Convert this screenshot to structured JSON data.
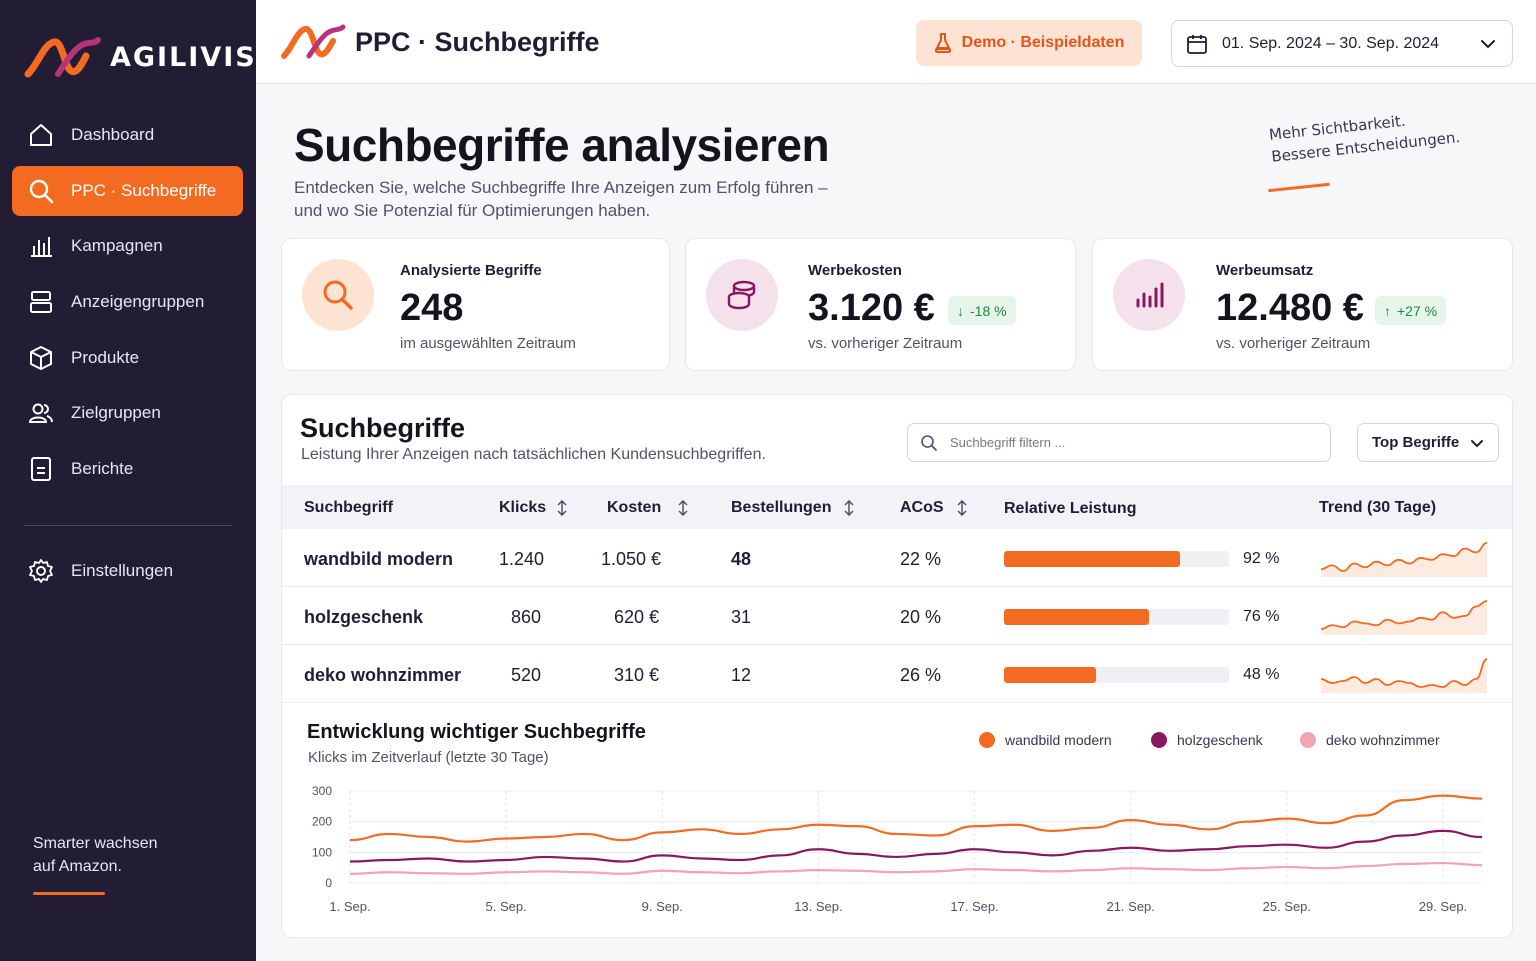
{
  "brand": {
    "name": "AGILIVIS",
    "accent": "#f26b21",
    "dark": "#221c34"
  },
  "sidebar": {
    "items": [
      {
        "label": "Dashboard",
        "icon": "home-icon"
      },
      {
        "label": "PPC · Suchbegriffe",
        "icon": "search-icon",
        "active": true
      },
      {
        "label": "Kampagnen",
        "icon": "bar-chart-icon"
      },
      {
        "label": "Anzeigengruppen",
        "icon": "layers-icon"
      },
      {
        "label": "Produkte",
        "icon": "box-icon"
      },
      {
        "label": "Zielgruppen",
        "icon": "users-icon"
      },
      {
        "label": "Berichte",
        "icon": "document-icon"
      }
    ],
    "settings": {
      "label": "Einstellungen",
      "icon": "gear-icon"
    },
    "tagline_1": "Smarter wachsen",
    "tagline_2": "auf Amazon."
  },
  "header": {
    "title": "PPC · Suchbegriffe",
    "demo_badge": "Demo · Beispieldaten",
    "date_range": "01. Sep. 2024 – 30. Sep. 2024"
  },
  "page": {
    "title": "Suchbegriffe analysieren",
    "subtitle_1": "Entdecken Sie, welche Suchbegriffe Ihre Anzeigen zum Erfolg führen –",
    "subtitle_2": "und wo Sie Potenzial für Optimierungen haben.",
    "slogan_1": "Mehr Sichtbarkeit.",
    "slogan_2": "Bessere Entscheidungen."
  },
  "kpis": [
    {
      "label": "Analysierte Begriffe",
      "value": "248",
      "note": "im ausgewählten Zeitraum",
      "icon": "search-icon",
      "color": "#fde3d3"
    },
    {
      "label": "Werbekosten",
      "value": "3.120 €",
      "delta": "-18 %",
      "note": "vs. vorheriger Zeitraum",
      "icon": "coins-icon",
      "color": "#f4e1ec"
    },
    {
      "label": "Werbeumsatz",
      "value": "12.480 €",
      "delta": "+27 %",
      "note": "vs. vorheriger Zeitraum",
      "icon": "bar-chart-icon",
      "color": "#f4e1ec"
    }
  ],
  "table": {
    "title": "Suchbegriffe",
    "subtitle": "Leistung Ihrer Anzeigen nach tatsächlichen Kundensuchbegriffen.",
    "search_placeholder": "Suchbegriff filtern ...",
    "select_value": "Top Begriffe",
    "columns": [
      "Suchbegriff",
      "Klicks",
      "Kosten",
      "Bestellungen",
      "ACoS",
      "Relative Leistung",
      "Trend (30 Tage)"
    ],
    "rows": [
      {
        "term": "wandbild modern",
        "clicks": "1.240",
        "cost": "1.050 €",
        "orders": "48",
        "acos": "22 %",
        "perf": 92,
        "perf_label": "92 %",
        "trend": [
          12,
          14,
          11,
          15,
          13,
          16,
          14,
          17,
          15,
          18,
          17,
          20,
          19,
          23,
          21,
          26
        ]
      },
      {
        "term": "holzgeschenk",
        "clicks": "860",
        "cost": "620 €",
        "orders": "31",
        "acos": "20 %",
        "perf": 76,
        "perf_label": "76 %",
        "trend": [
          10,
          12,
          11,
          14,
          13,
          12,
          15,
          13,
          14,
          16,
          15,
          19,
          16,
          17,
          22,
          25
        ]
      },
      {
        "term": "deko wohnzimmer",
        "clicks": "520",
        "cost": "310 €",
        "orders": "12",
        "acos": "26 %",
        "perf": 48,
        "perf_label": "48 %",
        "trend": [
          16,
          14,
          15,
          17,
          14,
          16,
          13,
          15,
          14,
          12,
          13,
          12,
          15,
          13,
          16,
          26
        ]
      }
    ]
  },
  "chart_data": {
    "type": "line",
    "title": "Entwicklung wichtiger Suchbegriffe",
    "subtitle": "Klicks im Zeitverlauf (letzte 30 Tage)",
    "ylim": [
      0,
      300
    ],
    "yticks": [
      0,
      100,
      200,
      300
    ],
    "xticks": [
      "1. Sep.",
      "5. Sep.",
      "9. Sep.",
      "13. Sep.",
      "17. Sep.",
      "21. Sep.",
      "25. Sep.",
      "29. Sep."
    ],
    "xtick_days": [
      1,
      5,
      9,
      13,
      17,
      21,
      25,
      29
    ],
    "x": [
      1,
      2,
      3,
      4,
      5,
      6,
      7,
      8,
      9,
      10,
      11,
      12,
      13,
      14,
      15,
      16,
      17,
      18,
      19,
      20,
      21,
      22,
      23,
      24,
      25,
      26,
      27,
      28,
      29,
      30
    ],
    "series": [
      {
        "name": "wandbild modern",
        "color": "#f26b21",
        "values": [
          140,
          160,
          150,
          135,
          145,
          150,
          160,
          140,
          165,
          175,
          160,
          175,
          190,
          185,
          160,
          155,
          185,
          190,
          170,
          180,
          205,
          190,
          175,
          200,
          210,
          195,
          220,
          270,
          285,
          275
        ]
      },
      {
        "name": "holzgeschenk",
        "color": "#8a1860",
        "values": [
          70,
          75,
          80,
          70,
          75,
          85,
          80,
          70,
          90,
          80,
          75,
          90,
          110,
          95,
          85,
          95,
          110,
          100,
          90,
          105,
          115,
          105,
          110,
          120,
          125,
          115,
          135,
          155,
          170,
          150
        ]
      },
      {
        "name": "deko wohnzimmer",
        "color": "#f4a3b0",
        "values": [
          30,
          35,
          32,
          30,
          35,
          38,
          35,
          30,
          40,
          35,
          32,
          38,
          42,
          40,
          35,
          38,
          45,
          42,
          38,
          42,
          48,
          45,
          42,
          48,
          52,
          48,
          55,
          62,
          65,
          58
        ]
      }
    ]
  }
}
